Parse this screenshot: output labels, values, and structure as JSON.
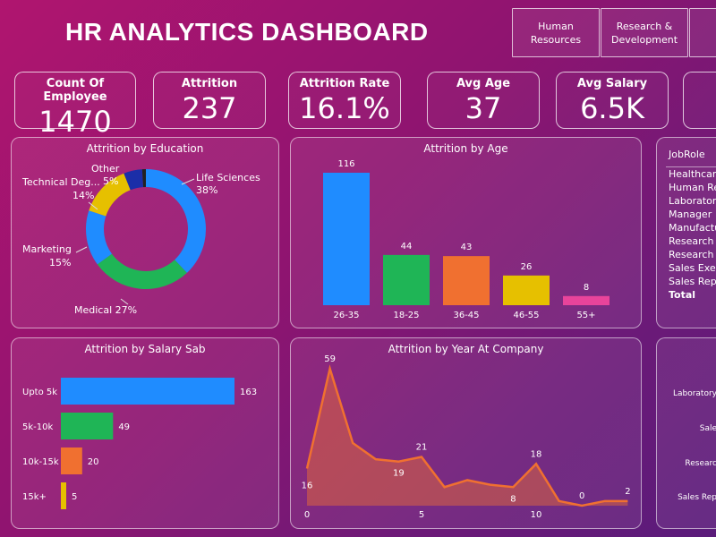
{
  "header": {
    "title": "HR ANALYTICS DASHBOARD"
  },
  "departments": [
    {
      "line1": "Human",
      "line2": "Resources"
    },
    {
      "line1": "Research &",
      "line2": "Development"
    }
  ],
  "kpis": [
    {
      "label": "Count Of Employee",
      "value": "1470"
    },
    {
      "label": "Attrition",
      "value": "237"
    },
    {
      "label": "Attrition Rate",
      "value": "16.1%"
    },
    {
      "label": "Avg Age",
      "value": "37"
    },
    {
      "label": "Avg Salary",
      "value": "6.5K"
    }
  ],
  "education": {
    "title": "Attrition by Education",
    "chart_data": {
      "type": "pie",
      "title": "Attrition by Education",
      "slices": [
        {
          "name": "Life Sciences",
          "percent": 38,
          "color": "#1f8cff"
        },
        {
          "name": "Medical",
          "percent": 27,
          "color": "#1fb556"
        },
        {
          "name": "Marketing",
          "percent": 15,
          "color": "#1f8cff"
        },
        {
          "name": "Technical Deg...",
          "percent": 14,
          "color": "#e6c000"
        },
        {
          "name": "Other",
          "percent": 5,
          "color": "#1b2ea8"
        },
        {
          "name": "",
          "percent": 1,
          "color": "#222222"
        }
      ]
    },
    "labels": {
      "life": "Life Sciences",
      "life_pct": "38%",
      "medical": "Medical 27%",
      "marketing": "Marketing",
      "marketing_pct": "15%",
      "technical": "Technical Deg...",
      "technical_pct": "14%",
      "other": "Other",
      "other_pct": "5%"
    }
  },
  "age": {
    "title": "Attrition by Age",
    "chart_data": {
      "type": "bar",
      "title": "Attrition by Age",
      "categories": [
        "26-35",
        "18-25",
        "36-45",
        "46-55",
        "55+"
      ],
      "values": [
        116,
        44,
        43,
        26,
        8
      ],
      "colors": [
        "#1f8cff",
        "#1fb556",
        "#f07030",
        "#e6c000",
        "#e8449b"
      ],
      "ylim": [
        0,
        116
      ]
    }
  },
  "jobrole": {
    "header": "JobRole",
    "items": [
      "Healthcare",
      "Human Res",
      "Laboratory",
      "Manager",
      "Manufactu",
      "Research D",
      "Research S",
      "Sales Execu",
      "Sales Repre"
    ],
    "total": "Total"
  },
  "salary": {
    "title": "Attrition by Salary Sab",
    "chart_data": {
      "type": "bar",
      "orientation": "horizontal",
      "title": "Attrition by Salary Sab",
      "categories": [
        "Upto 5k",
        "5k-10k",
        "10k-15k",
        "15k+"
      ],
      "values": [
        163,
        49,
        20,
        5
      ],
      "colors": [
        "#1f8cff",
        "#1fb556",
        "#f07030",
        "#e6c000"
      ],
      "xlim": [
        0,
        163
      ]
    }
  },
  "years": {
    "title": "Attrition by Year At Company",
    "chart_data": {
      "type": "area",
      "title": "Attrition by Year At Company",
      "x": [
        0,
        1,
        2,
        3,
        4,
        5,
        6,
        7,
        8,
        9,
        10,
        11,
        12,
        13,
        14
      ],
      "y": [
        16,
        59,
        27,
        20,
        19,
        21,
        8,
        11,
        9,
        8,
        18,
        2,
        0,
        2,
        2
      ],
      "labeled_points": [
        0,
        1,
        4,
        5,
        9,
        10,
        12,
        14
      ],
      "xticks": [
        0,
        5,
        10
      ],
      "ylim": [
        0,
        59
      ],
      "color": "#f07030"
    }
  },
  "right_panel": {
    "labels": [
      "Laboratory",
      "Sale",
      "Researc",
      "Sales Rep"
    ]
  }
}
